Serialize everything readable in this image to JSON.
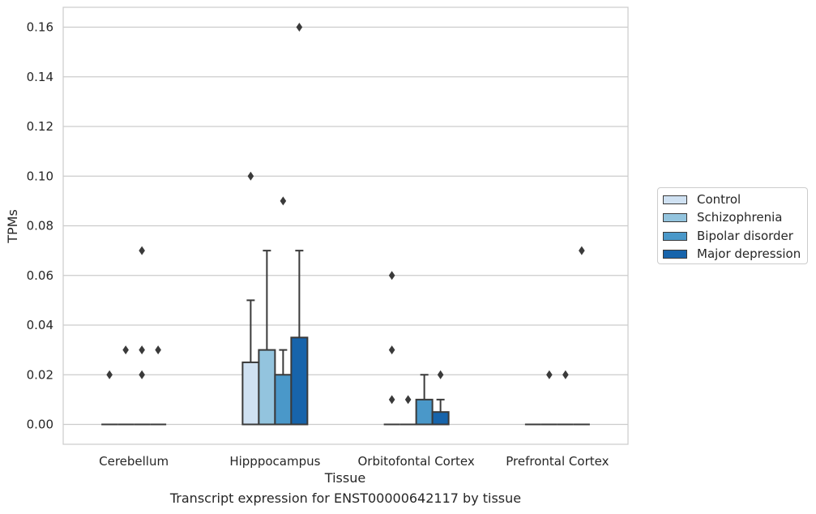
{
  "caption": "Transcript expression for ENST00000642117 by tissue",
  "colors": {
    "Control": "#cfe1f2",
    "Schizophrenia": "#93c4de",
    "Bipolar disorder": "#4a98c9",
    "Major depression": "#1764ab",
    "line": "#3a3a3a",
    "grid": "#cccccc"
  },
  "chart_data": {
    "type": "box",
    "xlabel": "Tissue",
    "ylabel": "TPMs",
    "ylim": [
      -0.008,
      0.168
    ],
    "yticks": [
      0.0,
      0.02,
      0.04,
      0.06,
      0.08,
      0.1,
      0.12,
      0.14,
      0.16
    ],
    "ytick_labels": [
      "0.00",
      "0.02",
      "0.04",
      "0.06",
      "0.08",
      "0.10",
      "0.12",
      "0.14",
      "0.16"
    ],
    "grid": true,
    "legend_position": "right",
    "categories": [
      "Cerebellum",
      "Hipppocampus",
      "Orbitofontal Cortex",
      "Prefrontal Cortex"
    ],
    "series": [
      {
        "name": "Control",
        "boxes": [
          {
            "q1": 0,
            "median": 0,
            "q3": 0,
            "whislo": 0,
            "whishi": 0,
            "fliers": [
              0.02
            ]
          },
          {
            "q1": 0,
            "median": 0,
            "q3": 0.025,
            "whislo": 0,
            "whishi": 0.05,
            "fliers": [
              0.1
            ]
          },
          {
            "q1": 0,
            "median": 0,
            "q3": 0,
            "whislo": 0,
            "whishi": 0,
            "fliers": [
              0.06,
              0.03,
              0.01
            ]
          },
          {
            "q1": 0,
            "median": 0,
            "q3": 0,
            "whislo": 0,
            "whishi": 0,
            "fliers": []
          }
        ]
      },
      {
        "name": "Schizophrenia",
        "boxes": [
          {
            "q1": 0,
            "median": 0,
            "q3": 0,
            "whislo": 0,
            "whishi": 0,
            "fliers": [
              0.03
            ]
          },
          {
            "q1": 0,
            "median": 0,
            "q3": 0.03,
            "whislo": 0,
            "whishi": 0.07,
            "fliers": []
          },
          {
            "q1": 0,
            "median": 0,
            "q3": 0,
            "whislo": 0,
            "whishi": 0,
            "fliers": [
              0.01
            ]
          },
          {
            "q1": 0,
            "median": 0,
            "q3": 0,
            "whislo": 0,
            "whishi": 0,
            "fliers": [
              0.02
            ]
          }
        ]
      },
      {
        "name": "Bipolar disorder",
        "boxes": [
          {
            "q1": 0,
            "median": 0,
            "q3": 0,
            "whislo": 0,
            "whishi": 0,
            "fliers": [
              0.07,
              0.03,
              0.02
            ]
          },
          {
            "q1": 0,
            "median": 0,
            "q3": 0.02,
            "whislo": 0,
            "whishi": 0.03,
            "fliers": [
              0.09
            ]
          },
          {
            "q1": 0,
            "median": 0,
            "q3": 0.01,
            "whislo": 0,
            "whishi": 0.02,
            "fliers": []
          },
          {
            "q1": 0,
            "median": 0,
            "q3": 0,
            "whislo": 0,
            "whishi": 0,
            "fliers": [
              0.02
            ]
          }
        ]
      },
      {
        "name": "Major depression",
        "boxes": [
          {
            "q1": 0,
            "median": 0,
            "q3": 0,
            "whislo": 0,
            "whishi": 0,
            "fliers": [
              0.03
            ]
          },
          {
            "q1": 0,
            "median": 0,
            "q3": 0.035,
            "whislo": 0,
            "whishi": 0.07,
            "fliers": [
              0.16
            ]
          },
          {
            "q1": 0,
            "median": 0,
            "q3": 0.005,
            "whislo": 0,
            "whishi": 0.01,
            "fliers": [
              0.02
            ]
          },
          {
            "q1": 0,
            "median": 0,
            "q3": 0,
            "whislo": 0,
            "whishi": 0,
            "fliers": [
              0.07
            ]
          }
        ]
      }
    ]
  }
}
